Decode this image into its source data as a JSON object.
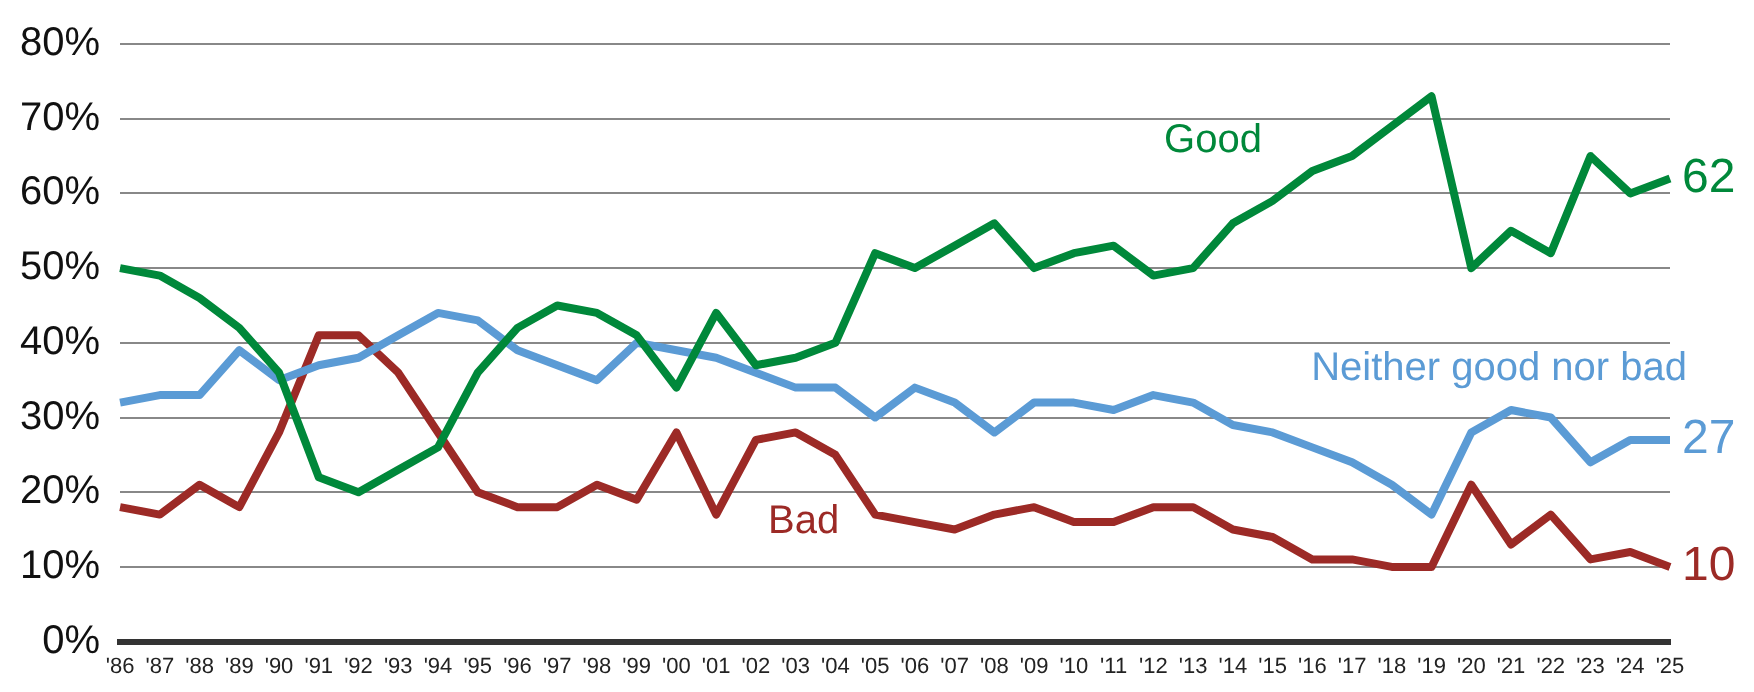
{
  "chart_data": {
    "type": "line",
    "categories": [
      "'86",
      "'87",
      "'88",
      "'89",
      "'90",
      "'91",
      "'92",
      "'93",
      "'94",
      "'95",
      "'96",
      "'97",
      "'98",
      "'99",
      "'00",
      "'01",
      "'02",
      "'03",
      "'04",
      "'05",
      "'06",
      "'07",
      "'08",
      "'09",
      "'10",
      "'11",
      "'12",
      "'13",
      "'14",
      "'15",
      "'16",
      "'17",
      "'18",
      "'19",
      "'20",
      "'21",
      "'22",
      "'23",
      "'24",
      "'25"
    ],
    "series": [
      {
        "name": "Good",
        "color": "#00883a",
        "values": [
          50,
          49,
          46,
          42,
          36,
          22,
          20,
          23,
          26,
          36,
          42,
          45,
          44,
          41,
          34,
          44,
          37,
          38,
          40,
          52,
          50,
          53,
          56,
          50,
          52,
          53,
          49,
          50,
          56,
          59,
          63,
          65,
          69,
          73,
          50,
          55,
          52,
          65,
          60,
          62
        ],
        "value_labels": [
          null,
          null,
          null,
          null,
          null,
          null,
          null,
          null,
          null,
          null,
          null,
          null,
          null,
          null,
          null,
          null,
          null,
          null,
          null,
          null,
          null,
          null,
          null,
          null,
          null,
          null,
          null,
          null,
          null,
          null,
          null,
          null,
          null,
          null,
          null,
          null,
          null,
          null,
          null,
          "62"
        ]
      },
      {
        "name": "Neither good nor bad",
        "color": "#5b9bd5",
        "values": [
          32,
          33,
          33,
          39,
          35,
          37,
          38,
          41,
          44,
          43,
          39,
          37,
          35,
          40,
          39,
          38,
          36,
          34,
          34,
          30,
          34,
          32,
          28,
          32,
          32,
          31,
          33,
          32,
          29,
          28,
          26,
          24,
          21,
          17,
          28,
          31,
          30,
          24,
          27,
          27
        ],
        "value_labels": [
          null,
          null,
          null,
          null,
          null,
          null,
          null,
          null,
          null,
          null,
          null,
          null,
          null,
          null,
          null,
          null,
          null,
          null,
          null,
          null,
          null,
          null,
          null,
          null,
          null,
          null,
          null,
          null,
          null,
          null,
          null,
          null,
          null,
          null,
          null,
          null,
          null,
          null,
          null,
          "27"
        ]
      },
      {
        "name": "Bad",
        "color": "#9c2a26",
        "values": [
          18,
          17,
          21,
          18,
          28,
          41,
          41,
          36,
          28,
          20,
          18,
          18,
          21,
          19,
          28,
          17,
          27,
          28,
          25,
          17,
          16,
          15,
          17,
          18,
          16,
          16,
          18,
          18,
          15,
          14,
          11,
          11,
          10,
          10,
          21,
          13,
          17,
          11,
          12,
          10
        ],
        "value_labels": [
          null,
          null,
          null,
          null,
          null,
          null,
          null,
          null,
          null,
          null,
          null,
          null,
          null,
          null,
          null,
          null,
          null,
          null,
          null,
          null,
          null,
          null,
          null,
          null,
          null,
          null,
          null,
          null,
          null,
          null,
          null,
          null,
          null,
          null,
          null,
          null,
          null,
          null,
          null,
          "10"
        ]
      }
    ],
    "ylim": [
      0,
      80
    ],
    "yticks": [
      {
        "value": 0,
        "label": "0%"
      },
      {
        "value": 10,
        "label": "10%"
      },
      {
        "value": 20,
        "label": "20%"
      },
      {
        "value": 30,
        "label": "30%"
      },
      {
        "value": 40,
        "label": "40%"
      },
      {
        "value": 50,
        "label": "50%"
      },
      {
        "value": 60,
        "label": "60%"
      },
      {
        "value": 70,
        "label": "70%"
      },
      {
        "value": 80,
        "label": "80%"
      }
    ],
    "grid": "y",
    "legend": false,
    "marker": "none",
    "line_style": "solid"
  }
}
